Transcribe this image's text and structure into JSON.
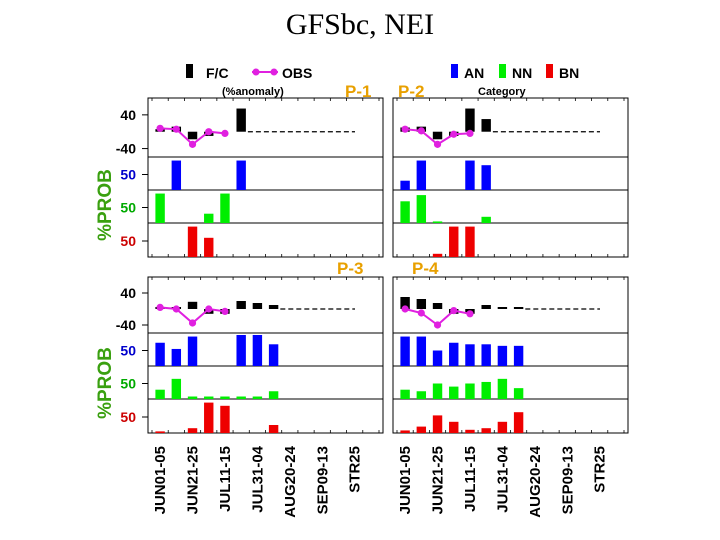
{
  "title": "GFSbc, NEI",
  "legend": {
    "fc_label": "F/C",
    "obs_label": "OBS",
    "obs_sub": "(%anomaly)",
    "an_label": "AN",
    "nn_label": "NN",
    "bn_label": "BN",
    "cat_sub": "Category"
  },
  "colors": {
    "fc": "#000000",
    "obs": "#e020e0",
    "an": "#0000ff",
    "nn": "#00ee00",
    "bn": "#ee0000",
    "panel_label": "#e8a000",
    "prob_label": "#3aa010",
    "an_tick": "#0000cc",
    "nn_tick": "#00aa00",
    "bn_tick": "#cc0000"
  },
  "y_axis_title": "%PROB",
  "tick_labels": {
    "anom_hi": "40",
    "anom_lo": "-40",
    "prob": "50"
  },
  "x_labels": [
    "JUN01-05",
    "JUN21-25",
    "JUL11-15",
    "JUL31-04",
    "AUG20-24",
    "SEP09-13",
    "STR25"
  ],
  "chart_data": [
    {
      "panel": "P-1",
      "type": "bar",
      "n_periods": 14,
      "anomaly_ylim": [
        -60,
        80
      ],
      "prob_ylim": [
        0,
        100
      ],
      "fc_anomaly": [
        6,
        12,
        -18,
        -10,
        0,
        55,
        null,
        null,
        null,
        null,
        null,
        null,
        null,
        null
      ],
      "obs_anomaly": [
        8,
        6,
        -30,
        0,
        -4,
        null,
        null,
        null,
        null,
        null,
        null,
        null,
        null,
        null
      ],
      "an_prob": [
        0,
        95,
        0,
        0,
        0,
        95,
        null,
        null,
        null,
        null,
        null,
        null,
        null,
        null
      ],
      "nn_prob": [
        95,
        0,
        0,
        30,
        95,
        0,
        null,
        null,
        null,
        null,
        null,
        null,
        null,
        null
      ],
      "bn_prob": [
        0,
        0,
        95,
        60,
        0,
        0,
        null,
        null,
        null,
        null,
        null,
        null,
        null,
        null
      ]
    },
    {
      "panel": "P-2",
      "type": "bar",
      "n_periods": 14,
      "anomaly_ylim": [
        -60,
        80
      ],
      "prob_ylim": [
        0,
        100
      ],
      "fc_anomaly": [
        10,
        12,
        -18,
        -10,
        55,
        30,
        null,
        null,
        null,
        null,
        null,
        null,
        null,
        null
      ],
      "obs_anomaly": [
        6,
        2,
        -30,
        -6,
        -4,
        null,
        null,
        null,
        null,
        null,
        null,
        null,
        null,
        null
      ],
      "an_prob": [
        30,
        95,
        0,
        0,
        95,
        80,
        null,
        null,
        null,
        null,
        null,
        null,
        null,
        null
      ],
      "nn_prob": [
        70,
        90,
        5,
        0,
        0,
        20,
        null,
        null,
        null,
        null,
        null,
        null,
        null,
        null
      ],
      "bn_prob": [
        0,
        0,
        10,
        95,
        95,
        0,
        null,
        null,
        null,
        null,
        null,
        null,
        null,
        null
      ]
    },
    {
      "panel": "P-3",
      "type": "bar",
      "n_periods": 14,
      "anomaly_ylim": [
        -60,
        80
      ],
      "prob_ylim": [
        0,
        100
      ],
      "fc_anomaly": [
        5,
        5,
        18,
        -12,
        -12,
        20,
        15,
        10,
        null,
        null,
        null,
        null,
        null,
        null
      ],
      "obs_anomaly": [
        4,
        0,
        -35,
        0,
        -6,
        null,
        null,
        null,
        null,
        null,
        null,
        null,
        null,
        null
      ],
      "an_prob": [
        75,
        55,
        95,
        0,
        0,
        100,
        100,
        70,
        null,
        null,
        null,
        null,
        null,
        null
      ],
      "nn_prob": [
        30,
        65,
        8,
        8,
        8,
        8,
        8,
        25,
        null,
        null,
        null,
        null,
        null,
        null
      ],
      "bn_prob": [
        5,
        0,
        15,
        95,
        85,
        0,
        0,
        25,
        null,
        null,
        null,
        null,
        null,
        null
      ]
    },
    {
      "panel": "P-4",
      "type": "bar",
      "n_periods": 14,
      "anomaly_ylim": [
        -60,
        80
      ],
      "prob_ylim": [
        0,
        100
      ],
      "fc_anomaly": [
        30,
        25,
        15,
        -12,
        -12,
        10,
        5,
        5,
        null,
        null,
        null,
        null,
        null,
        null
      ],
      "obs_anomaly": [
        0,
        -10,
        -40,
        -4,
        -12,
        null,
        null,
        null,
        null,
        null,
        null,
        null,
        null,
        null
      ],
      "an_prob": [
        95,
        95,
        50,
        75,
        70,
        70,
        65,
        65,
        null,
        null,
        null,
        null,
        null,
        null
      ],
      "nn_prob": [
        30,
        25,
        50,
        40,
        50,
        55,
        65,
        35,
        null,
        null,
        null,
        null,
        null,
        null
      ],
      "bn_prob": [
        8,
        20,
        55,
        35,
        10,
        15,
        35,
        65,
        null,
        null,
        null,
        null,
        null,
        null
      ]
    }
  ]
}
